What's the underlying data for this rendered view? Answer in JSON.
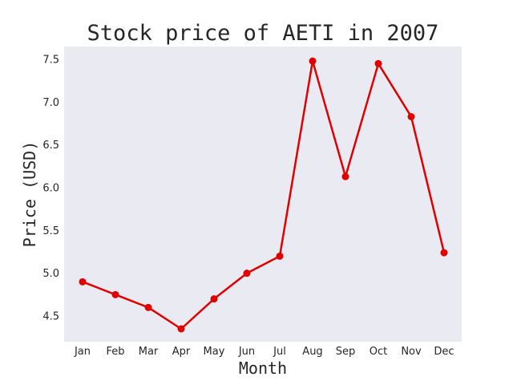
{
  "chart_data": {
    "type": "line",
    "title": "Stock price of AETI in 2007",
    "xlabel": "Month",
    "ylabel": "Price (USD)",
    "categories": [
      "Jan",
      "Feb",
      "Mar",
      "Apr",
      "May",
      "Jun",
      "Jul",
      "Aug",
      "Sep",
      "Oct",
      "Nov",
      "Dec"
    ],
    "values": [
      4.9,
      4.75,
      4.6,
      4.35,
      4.7,
      5.0,
      5.2,
      7.48,
      6.13,
      7.45,
      6.83,
      5.24
    ],
    "ylim": [
      4.2,
      7.65
    ],
    "yticks": [
      "4.5",
      "5.0",
      "5.5",
      "6.0",
      "6.5",
      "7.0",
      "7.5"
    ],
    "grid": false,
    "colors": {
      "line": "#e00000",
      "plot_bg": "#eaeaf2"
    }
  }
}
